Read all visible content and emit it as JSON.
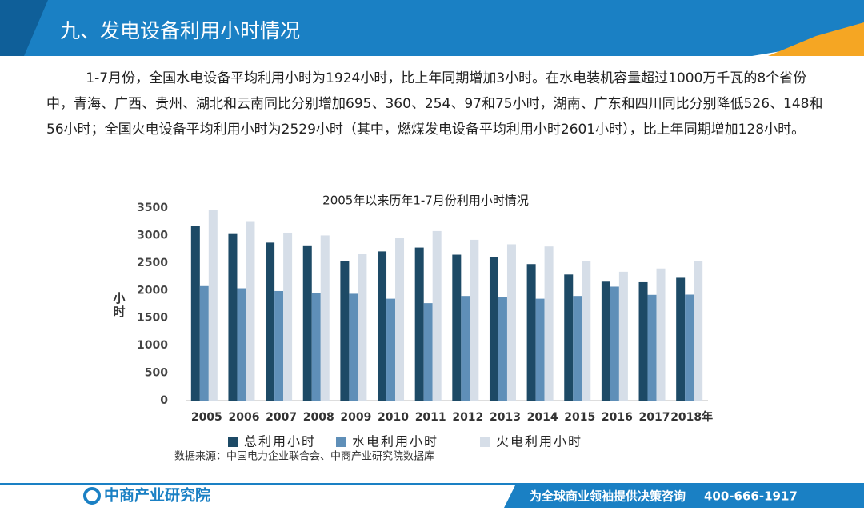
{
  "header": {
    "title": "九、发电设备利用小时情况"
  },
  "paragraph": "1-7月份，全国水电设备平均利用小时为1924小时，比上年同期增加3小时。在水电装机容量超过1000万千瓦的8个省份中，青海、广西、贵州、湖北和云南同比分别增加695、360、254、97和75小时，湖南、广东和四川同比分别降低526、148和56小时；全国火电设备平均利用小时为2529小时（其中，燃煤发电设备平均利用小时2601小时），比上年同期增加128小时。",
  "chart_data": {
    "type": "bar",
    "title": "2005年以来历年1-7月份利用小时情况",
    "y_label": "小时",
    "categories": [
      "2005",
      "2006",
      "2007",
      "2008",
      "2009",
      "2010",
      "2011",
      "2012",
      "2013",
      "2014",
      "2015",
      "2016",
      "2017",
      "2018年"
    ],
    "series": [
      {
        "name": "总利用小时",
        "color": "#1d4a66",
        "values": [
          3170,
          3040,
          2870,
          2820,
          2530,
          2710,
          2780,
          2650,
          2600,
          2480,
          2290,
          2160,
          2150,
          2230
        ]
      },
      {
        "name": "水电利用小时",
        "color": "#5f8fb8",
        "values": [
          2080,
          2040,
          1990,
          1960,
          1940,
          1850,
          1770,
          1900,
          1880,
          1850,
          1900,
          2070,
          1920,
          1924
        ]
      },
      {
        "name": "火电利用小时",
        "color": "#d6dee8",
        "values": [
          3460,
          3260,
          3050,
          3000,
          2660,
          2960,
          3080,
          2920,
          2840,
          2800,
          2530,
          2340,
          2400,
          2529
        ]
      }
    ],
    "ylim": [
      0,
      3500
    ],
    "yticks": [
      0,
      500,
      1000,
      1500,
      2000,
      2500,
      3000,
      3500
    ],
    "grid": false,
    "legend": "bottom"
  },
  "source": "数据来源：中国电力企业联合会、中商产业研究院数据库",
  "footer": {
    "logo": "中商产业研究院",
    "slogan": "为全球商业领袖提供决策咨询",
    "phone": "400-666-1917"
  }
}
